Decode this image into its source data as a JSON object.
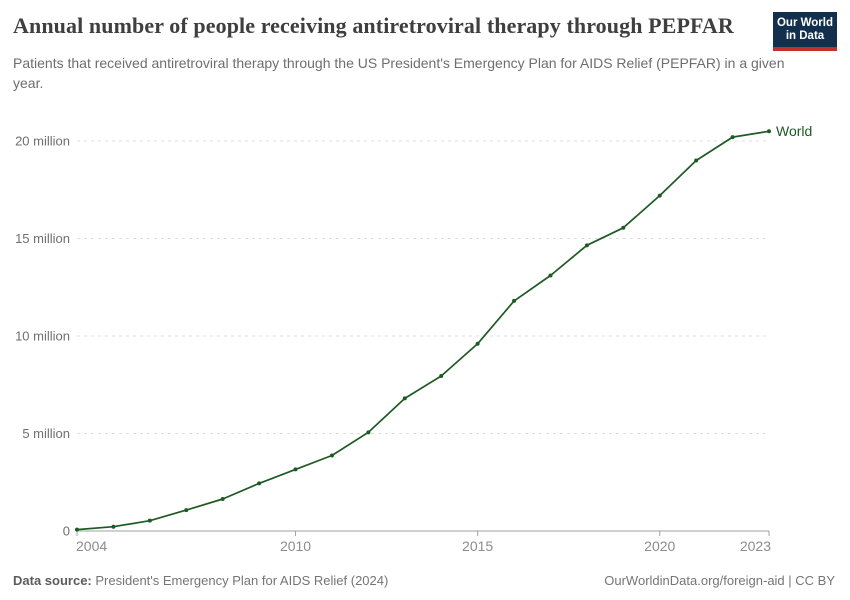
{
  "header": {
    "title": "Annual number of people receiving antiretroviral therapy through PEPFAR",
    "subtitle": "Patients that received antiretroviral therapy through the US President's Emergency Plan for AIDS Relief (PEPFAR) in a given year.",
    "logo": {
      "line1": "Our World",
      "line2": "in Data",
      "background_color": "#12304e",
      "accent_color": "#c2302d"
    }
  },
  "chart_data": {
    "type": "line",
    "title": "Annual number of people receiving antiretroviral therapy through PEPFAR",
    "xlabel": "",
    "ylabel": "",
    "unit": "million people",
    "xlim": [
      2004,
      2023
    ],
    "ylim": [
      0,
      20
    ],
    "grid": "horizontal dashed",
    "legend_position": "end-of-line label",
    "x_ticks": [
      2004,
      2010,
      2015,
      2020,
      2023
    ],
    "y_ticks": [
      {
        "value": 0,
        "label": "0"
      },
      {
        "value": 5,
        "label": "5 million"
      },
      {
        "value": 10,
        "label": "10 million"
      },
      {
        "value": 15,
        "label": "15 million"
      },
      {
        "value": 20,
        "label": "20 million"
      }
    ],
    "series": [
      {
        "name": "World",
        "color": "#1e5a23",
        "x": [
          2004,
          2005,
          2006,
          2007,
          2008,
          2009,
          2010,
          2011,
          2012,
          2013,
          2014,
          2015,
          2016,
          2017,
          2018,
          2019,
          2020,
          2021,
          2022,
          2023
        ],
        "values": [
          0.07,
          0.22,
          0.53,
          1.07,
          1.64,
          2.44,
          3.16,
          3.87,
          5.06,
          6.8,
          7.95,
          9.6,
          11.8,
          13.1,
          14.65,
          15.55,
          17.2,
          19.0,
          20.2,
          20.5
        ]
      }
    ],
    "axis_color": "#a1a1a1",
    "gridline_color": "#dcdcdc",
    "tick_label_color": "#8c8c8c"
  },
  "footer": {
    "source_label": "Data source:",
    "source_value": " President's Emergency Plan for AIDS Relief (2024)",
    "credit": "OurWorldinData.org/foreign-aid | CC BY"
  }
}
